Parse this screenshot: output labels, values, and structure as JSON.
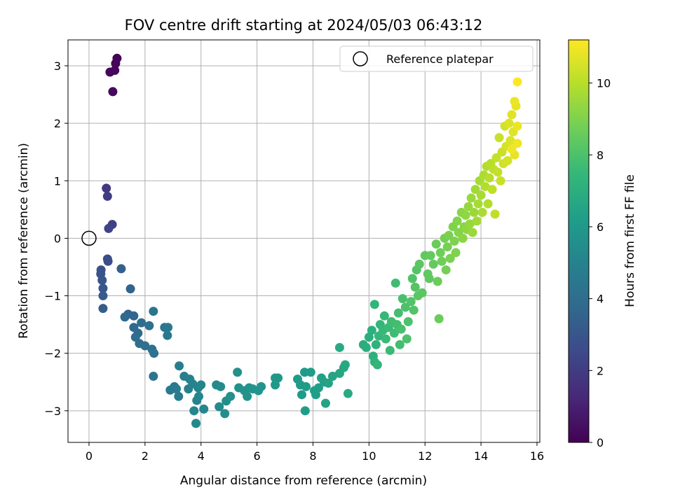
{
  "chart_data": {
    "type": "scatter",
    "title": "FOV centre drift starting at 2024/05/03 06:43:12",
    "xlabel": "Angular distance from reference (arcmin)",
    "ylabel": "Rotation from reference (arcmin)",
    "xlim": [
      -0.75,
      16.1
    ],
    "ylim": [
      -3.55,
      3.45
    ],
    "xticks": [
      0,
      2,
      4,
      6,
      8,
      10,
      12,
      14,
      16
    ],
    "xtick_labels": [
      "0",
      "2",
      "4",
      "6",
      "8",
      "10",
      "12",
      "14",
      "16"
    ],
    "yticks": [
      -3,
      -2,
      -1,
      0,
      1,
      2,
      3
    ],
    "ytick_labels": [
      "−3",
      "−2",
      "−1",
      "0",
      "1",
      "2",
      "3"
    ],
    "grid": true,
    "legend": {
      "placement": "upper right",
      "entries": [
        "Reference platepar"
      ]
    },
    "reference_point": {
      "x": 0,
      "y": 0,
      "label": "Reference platepar"
    },
    "colorbar": {
      "label": "Hours from first FF file",
      "colormap": "viridis",
      "range": [
        0,
        11.2
      ],
      "ticks": [
        0,
        2,
        4,
        6,
        8,
        10
      ],
      "tick_labels": [
        "0",
        "2",
        "4",
        "6",
        "8",
        "10"
      ]
    },
    "points": [
      [
        1.0,
        3.13,
        0.1
      ],
      [
        0.95,
        3.04,
        0.15
      ],
      [
        0.92,
        2.92,
        0.2
      ],
      [
        0.75,
        2.89,
        0.25
      ],
      [
        0.85,
        2.55,
        0.3
      ],
      [
        0.62,
        0.87,
        1.9
      ],
      [
        0.66,
        0.73,
        2.0
      ],
      [
        0.83,
        0.24,
        2.2
      ],
      [
        0.7,
        0.17,
        2.3
      ],
      [
        0.66,
        -0.36,
        2.6
      ],
      [
        0.68,
        -0.4,
        2.7
      ],
      [
        0.43,
        -0.55,
        2.8
      ],
      [
        0.42,
        -0.62,
        2.9
      ],
      [
        0.47,
        -0.73,
        3.0
      ],
      [
        0.5,
        -0.87,
        3.1
      ],
      [
        0.5,
        -1.0,
        3.2
      ],
      [
        0.5,
        -1.22,
        3.3
      ],
      [
        1.15,
        -0.53,
        3.4
      ],
      [
        1.48,
        -0.88,
        3.5
      ],
      [
        1.4,
        -1.32,
        3.6
      ],
      [
        1.6,
        -1.35,
        3.7
      ],
      [
        1.28,
        -1.37,
        3.8
      ],
      [
        1.6,
        -1.55,
        3.8
      ],
      [
        1.75,
        -1.65,
        3.9
      ],
      [
        1.87,
        -1.47,
        3.9
      ],
      [
        1.66,
        -1.72,
        4.0
      ],
      [
        1.8,
        -1.83,
        4.0
      ],
      [
        2.0,
        -1.87,
        4.1
      ],
      [
        2.15,
        -1.52,
        4.1
      ],
      [
        2.25,
        -1.93,
        4.2
      ],
      [
        2.32,
        -2.0,
        4.2
      ],
      [
        2.3,
        -1.27,
        4.3
      ],
      [
        2.3,
        -2.4,
        4.3
      ],
      [
        2.7,
        -1.55,
        4.4
      ],
      [
        2.82,
        -1.55,
        4.5
      ],
      [
        2.8,
        -1.69,
        4.5
      ],
      [
        2.9,
        -2.64,
        4.6
      ],
      [
        3.05,
        -2.58,
        4.6
      ],
      [
        3.12,
        -2.62,
        4.7
      ],
      [
        3.2,
        -2.75,
        4.7
      ],
      [
        3.22,
        -2.22,
        4.8
      ],
      [
        3.4,
        -2.4,
        4.8
      ],
      [
        3.55,
        -2.62,
        4.9
      ],
      [
        3.6,
        -2.45,
        4.9
      ],
      [
        3.7,
        -2.53,
        5.0
      ],
      [
        3.85,
        -2.82,
        5.0
      ],
      [
        3.9,
        -2.6,
        5.0
      ],
      [
        4.0,
        -2.55,
        5.1
      ],
      [
        3.92,
        -2.75,
        5.1
      ],
      [
        3.75,
        -3.0,
        5.2
      ],
      [
        4.1,
        -2.97,
        5.2
      ],
      [
        3.82,
        -3.22,
        5.3
      ],
      [
        4.55,
        -2.55,
        5.3
      ],
      [
        4.7,
        -2.58,
        5.4
      ],
      [
        4.65,
        -2.93,
        5.4
      ],
      [
        4.85,
        -3.05,
        5.5
      ],
      [
        4.9,
        -2.83,
        5.5
      ],
      [
        5.05,
        -2.75,
        5.6
      ],
      [
        5.3,
        -2.33,
        5.6
      ],
      [
        5.35,
        -2.6,
        5.6
      ],
      [
        5.55,
        -2.65,
        5.7
      ],
      [
        5.65,
        -2.75,
        5.7
      ],
      [
        5.72,
        -2.6,
        5.7
      ],
      [
        5.85,
        -2.62,
        5.8
      ],
      [
        6.05,
        -2.65,
        5.8
      ],
      [
        6.15,
        -2.58,
        5.8
      ],
      [
        6.65,
        -2.43,
        5.9
      ],
      [
        6.75,
        -2.43,
        5.9
      ],
      [
        6.65,
        -2.55,
        6.0
      ],
      [
        7.45,
        -2.45,
        6.1
      ],
      [
        7.55,
        -2.55,
        6.1
      ],
      [
        7.6,
        -2.72,
        6.1
      ],
      [
        7.7,
        -2.33,
        6.1
      ],
      [
        7.75,
        -2.58,
        6.2
      ],
      [
        7.72,
        -3.0,
        6.2
      ],
      [
        7.92,
        -2.33,
        6.2
      ],
      [
        8.05,
        -2.65,
        6.3
      ],
      [
        8.1,
        -2.72,
        6.3
      ],
      [
        8.2,
        -2.6,
        6.3
      ],
      [
        8.3,
        -2.43,
        6.4
      ],
      [
        8.4,
        -2.5,
        6.4
      ],
      [
        8.45,
        -2.87,
        6.5
      ],
      [
        8.55,
        -2.52,
        6.5
      ],
      [
        8.7,
        -2.4,
        6.5
      ],
      [
        8.95,
        -2.35,
        6.6
      ],
      [
        9.1,
        -2.25,
        6.7
      ],
      [
        9.15,
        -2.2,
        6.7
      ],
      [
        9.25,
        -2.7,
        6.8
      ],
      [
        8.95,
        -1.9,
        6.8
      ],
      [
        9.8,
        -1.85,
        6.9
      ],
      [
        9.9,
        -1.9,
        7.0
      ],
      [
        10.0,
        -1.72,
        7.0
      ],
      [
        10.1,
        -1.6,
        7.1
      ],
      [
        10.15,
        -2.05,
        7.1
      ],
      [
        10.2,
        -2.15,
        7.2
      ],
      [
        10.25,
        -1.85,
        7.2
      ],
      [
        10.3,
        -2.2,
        7.3
      ],
      [
        10.2,
        -1.15,
        7.3
      ],
      [
        10.35,
        -1.7,
        7.4
      ],
      [
        10.4,
        -1.5,
        7.4
      ],
      [
        10.5,
        -1.6,
        7.5
      ],
      [
        10.55,
        -1.35,
        7.5
      ],
      [
        10.6,
        -1.75,
        7.6
      ],
      [
        10.7,
        -1.55,
        7.6
      ],
      [
        10.75,
        -1.95,
        7.6
      ],
      [
        10.8,
        -1.45,
        7.7
      ],
      [
        10.9,
        -1.65,
        7.7
      ],
      [
        10.95,
        -0.78,
        7.7
      ],
      [
        11.0,
        -1.5,
        7.8
      ],
      [
        11.05,
        -1.3,
        7.8
      ],
      [
        11.1,
        -1.85,
        7.8
      ],
      [
        11.15,
        -1.58,
        7.9
      ],
      [
        11.2,
        -1.05,
        7.9
      ],
      [
        11.3,
        -1.2,
        8.0
      ],
      [
        11.35,
        -1.75,
        8.0
      ],
      [
        11.4,
        -1.45,
        8.0
      ],
      [
        11.5,
        -1.1,
        8.1
      ],
      [
        11.55,
        -0.7,
        8.1
      ],
      [
        11.6,
        -1.25,
        8.1
      ],
      [
        11.65,
        -0.85,
        8.2
      ],
      [
        11.7,
        -0.55,
        8.2
      ],
      [
        11.75,
        -1.0,
        8.3
      ],
      [
        11.8,
        -0.45,
        8.3
      ],
      [
        11.9,
        -0.95,
        8.3
      ],
      [
        12.0,
        -0.3,
        8.4
      ],
      [
        12.1,
        -0.62,
        8.4
      ],
      [
        12.15,
        -0.7,
        8.4
      ],
      [
        12.2,
        -0.3,
        8.5
      ],
      [
        12.3,
        -0.45,
        8.5
      ],
      [
        12.4,
        -0.1,
        8.6
      ],
      [
        12.45,
        -0.75,
        8.6
      ],
      [
        12.5,
        -1.4,
        8.6
      ],
      [
        12.55,
        -0.25,
        8.7
      ],
      [
        12.6,
        -0.4,
        8.7
      ],
      [
        12.7,
        0.0,
        8.8
      ],
      [
        12.75,
        -0.55,
        8.8
      ],
      [
        12.8,
        -0.15,
        8.8
      ],
      [
        12.85,
        0.05,
        8.9
      ],
      [
        12.9,
        -0.35,
        8.9
      ],
      [
        13.0,
        0.2,
        9.0
      ],
      [
        13.05,
        -0.05,
        9.0
      ],
      [
        13.1,
        -0.25,
        9.0
      ],
      [
        13.15,
        0.3,
        9.1
      ],
      [
        13.2,
        0.1,
        9.1
      ],
      [
        13.3,
        0.45,
        9.2
      ],
      [
        13.35,
        0.0,
        9.2
      ],
      [
        13.4,
        0.2,
        9.2
      ],
      [
        13.45,
        0.4,
        9.3
      ],
      [
        13.5,
        0.15,
        9.3
      ],
      [
        13.55,
        0.55,
        9.4
      ],
      [
        13.6,
        0.25,
        9.4
      ],
      [
        13.65,
        0.7,
        9.5
      ],
      [
        13.7,
        0.1,
        9.5
      ],
      [
        13.75,
        0.45,
        9.5
      ],
      [
        13.8,
        0.85,
        9.6
      ],
      [
        13.85,
        0.3,
        9.6
      ],
      [
        13.9,
        0.6,
        9.7
      ],
      [
        13.95,
        1.0,
        9.7
      ],
      [
        14.0,
        0.75,
        9.7
      ],
      [
        14.05,
        0.45,
        9.8
      ],
      [
        14.1,
        1.1,
        9.8
      ],
      [
        14.15,
        0.9,
        9.9
      ],
      [
        14.2,
        1.25,
        9.9
      ],
      [
        14.25,
        0.6,
        9.9
      ],
      [
        14.3,
        1.05,
        10.0
      ],
      [
        14.35,
        1.3,
        10.0
      ],
      [
        14.4,
        0.85,
        10.1
      ],
      [
        14.45,
        1.2,
        10.1
      ],
      [
        14.5,
        0.42,
        10.1
      ],
      [
        14.55,
        1.4,
        10.2
      ],
      [
        14.6,
        1.15,
        10.2
      ],
      [
        14.65,
        1.75,
        10.3
      ],
      [
        14.7,
        1.0,
        10.3
      ],
      [
        14.75,
        1.5,
        10.3
      ],
      [
        14.8,
        1.3,
        10.4
      ],
      [
        14.85,
        1.95,
        10.4
      ],
      [
        14.9,
        1.6,
        10.5
      ],
      [
        14.95,
        1.35,
        10.5
      ],
      [
        15.0,
        2.0,
        10.6
      ],
      [
        15.05,
        1.7,
        10.6
      ],
      [
        15.1,
        2.15,
        10.7
      ],
      [
        15.15,
        1.85,
        10.7
      ],
      [
        15.2,
        1.45,
        10.8
      ],
      [
        15.25,
        2.3,
        10.8
      ],
      [
        15.3,
        1.95,
        10.9
      ],
      [
        15.2,
        2.38,
        10.9
      ],
      [
        15.1,
        1.55,
        11.0
      ],
      [
        15.3,
        1.65,
        11.0
      ],
      [
        15.3,
        2.72,
        11.2
      ]
    ]
  }
}
